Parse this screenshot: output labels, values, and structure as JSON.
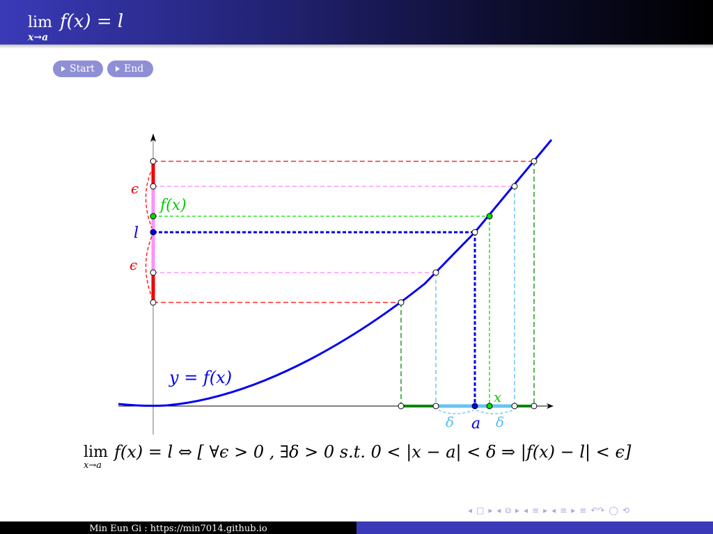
{
  "header": {
    "title_lim": "lim",
    "title_sub": "x→a",
    "title_expr": "f(x) = l"
  },
  "nav_buttons": {
    "start": "Start",
    "end": "End"
  },
  "diagram": {
    "labels": {
      "epsilon_upper": "ϵ",
      "epsilon_lower": "ϵ",
      "fx": "f(x)",
      "l": "l",
      "curve": "y = f(x)",
      "x": "x",
      "a": "a",
      "delta_left": "δ",
      "delta_right": "δ"
    },
    "colors": {
      "curve": "#0000ee",
      "epsilon": "#ff0000",
      "inner_band": "#ff80ff",
      "point_x": "#00cc00",
      "delta": "#55bbee",
      "delta_outer": "#008800"
    }
  },
  "formula": {
    "lim": "lim",
    "sub": "x→a",
    "body": "f(x) = l ⇔ [ ∀ϵ > 0 , ∃δ > 0  s.t.  0 < |x − a| < δ  ⇒ |f(x) − l| < ϵ]"
  },
  "beamer_nav": {
    "icons": [
      "◂",
      "□",
      "▸",
      "◂",
      "⧉",
      "▸",
      "◂",
      "≡",
      "▸",
      "◂",
      "≡",
      "▸",
      "≡",
      "↶↷",
      "◯",
      "⟲"
    ]
  },
  "footer": {
    "author": "Min Eun Gi : https://min7014.github.io"
  }
}
